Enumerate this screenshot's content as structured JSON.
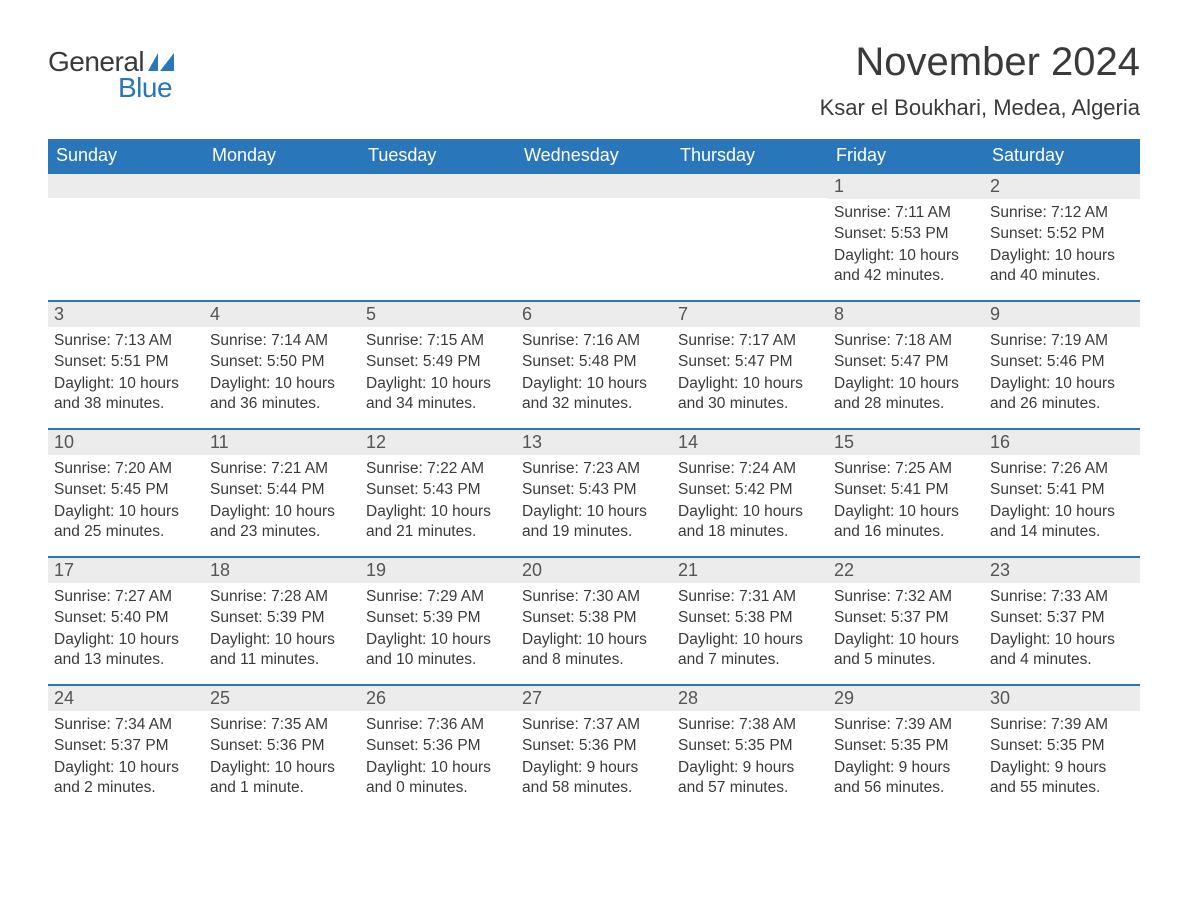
{
  "logo": {
    "text1": "General",
    "text2": "Blue",
    "accent_color": "#2a76bb"
  },
  "title": "November 2024",
  "location": "Ksar el Boukhari, Medea, Algeria",
  "colors": {
    "header_bg": "#2a76bb",
    "header_fg": "#ffffff",
    "daynum_bg": "#ececec",
    "daynum_fg": "#555555",
    "body_fg": "#3a3a3a",
    "row_border": "#2a76bb",
    "page_bg": "#ffffff"
  },
  "typography": {
    "title_fontsize": 40,
    "location_fontsize": 22,
    "weekday_fontsize": 18,
    "daynum_fontsize": 18,
    "body_fontsize": 15.5
  },
  "layout": {
    "columns": 7,
    "rows": 5,
    "first_day_column_index": 5
  },
  "weekdays": [
    "Sunday",
    "Monday",
    "Tuesday",
    "Wednesday",
    "Thursday",
    "Friday",
    "Saturday"
  ],
  "labels": {
    "sunrise": "Sunrise: ",
    "sunset": "Sunset: ",
    "daylight": "Daylight: "
  },
  "days": [
    {
      "n": 1,
      "sunrise": "7:11 AM",
      "sunset": "5:53 PM",
      "daylight": "10 hours and 42 minutes."
    },
    {
      "n": 2,
      "sunrise": "7:12 AM",
      "sunset": "5:52 PM",
      "daylight": "10 hours and 40 minutes."
    },
    {
      "n": 3,
      "sunrise": "7:13 AM",
      "sunset": "5:51 PM",
      "daylight": "10 hours and 38 minutes."
    },
    {
      "n": 4,
      "sunrise": "7:14 AM",
      "sunset": "5:50 PM",
      "daylight": "10 hours and 36 minutes."
    },
    {
      "n": 5,
      "sunrise": "7:15 AM",
      "sunset": "5:49 PM",
      "daylight": "10 hours and 34 minutes."
    },
    {
      "n": 6,
      "sunrise": "7:16 AM",
      "sunset": "5:48 PM",
      "daylight": "10 hours and 32 minutes."
    },
    {
      "n": 7,
      "sunrise": "7:17 AM",
      "sunset": "5:47 PM",
      "daylight": "10 hours and 30 minutes."
    },
    {
      "n": 8,
      "sunrise": "7:18 AM",
      "sunset": "5:47 PM",
      "daylight": "10 hours and 28 minutes."
    },
    {
      "n": 9,
      "sunrise": "7:19 AM",
      "sunset": "5:46 PM",
      "daylight": "10 hours and 26 minutes."
    },
    {
      "n": 10,
      "sunrise": "7:20 AM",
      "sunset": "5:45 PM",
      "daylight": "10 hours and 25 minutes."
    },
    {
      "n": 11,
      "sunrise": "7:21 AM",
      "sunset": "5:44 PM",
      "daylight": "10 hours and 23 minutes."
    },
    {
      "n": 12,
      "sunrise": "7:22 AM",
      "sunset": "5:43 PM",
      "daylight": "10 hours and 21 minutes."
    },
    {
      "n": 13,
      "sunrise": "7:23 AM",
      "sunset": "5:43 PM",
      "daylight": "10 hours and 19 minutes."
    },
    {
      "n": 14,
      "sunrise": "7:24 AM",
      "sunset": "5:42 PM",
      "daylight": "10 hours and 18 minutes."
    },
    {
      "n": 15,
      "sunrise": "7:25 AM",
      "sunset": "5:41 PM",
      "daylight": "10 hours and 16 minutes."
    },
    {
      "n": 16,
      "sunrise": "7:26 AM",
      "sunset": "5:41 PM",
      "daylight": "10 hours and 14 minutes."
    },
    {
      "n": 17,
      "sunrise": "7:27 AM",
      "sunset": "5:40 PM",
      "daylight": "10 hours and 13 minutes."
    },
    {
      "n": 18,
      "sunrise": "7:28 AM",
      "sunset": "5:39 PM",
      "daylight": "10 hours and 11 minutes."
    },
    {
      "n": 19,
      "sunrise": "7:29 AM",
      "sunset": "5:39 PM",
      "daylight": "10 hours and 10 minutes."
    },
    {
      "n": 20,
      "sunrise": "7:30 AM",
      "sunset": "5:38 PM",
      "daylight": "10 hours and 8 minutes."
    },
    {
      "n": 21,
      "sunrise": "7:31 AM",
      "sunset": "5:38 PM",
      "daylight": "10 hours and 7 minutes."
    },
    {
      "n": 22,
      "sunrise": "7:32 AM",
      "sunset": "5:37 PM",
      "daylight": "10 hours and 5 minutes."
    },
    {
      "n": 23,
      "sunrise": "7:33 AM",
      "sunset": "5:37 PM",
      "daylight": "10 hours and 4 minutes."
    },
    {
      "n": 24,
      "sunrise": "7:34 AM",
      "sunset": "5:37 PM",
      "daylight": "10 hours and 2 minutes."
    },
    {
      "n": 25,
      "sunrise": "7:35 AM",
      "sunset": "5:36 PM",
      "daylight": "10 hours and 1 minute."
    },
    {
      "n": 26,
      "sunrise": "7:36 AM",
      "sunset": "5:36 PM",
      "daylight": "10 hours and 0 minutes."
    },
    {
      "n": 27,
      "sunrise": "7:37 AM",
      "sunset": "5:36 PM",
      "daylight": "9 hours and 58 minutes."
    },
    {
      "n": 28,
      "sunrise": "7:38 AM",
      "sunset": "5:35 PM",
      "daylight": "9 hours and 57 minutes."
    },
    {
      "n": 29,
      "sunrise": "7:39 AM",
      "sunset": "5:35 PM",
      "daylight": "9 hours and 56 minutes."
    },
    {
      "n": 30,
      "sunrise": "7:39 AM",
      "sunset": "5:35 PM",
      "daylight": "9 hours and 55 minutes."
    }
  ]
}
